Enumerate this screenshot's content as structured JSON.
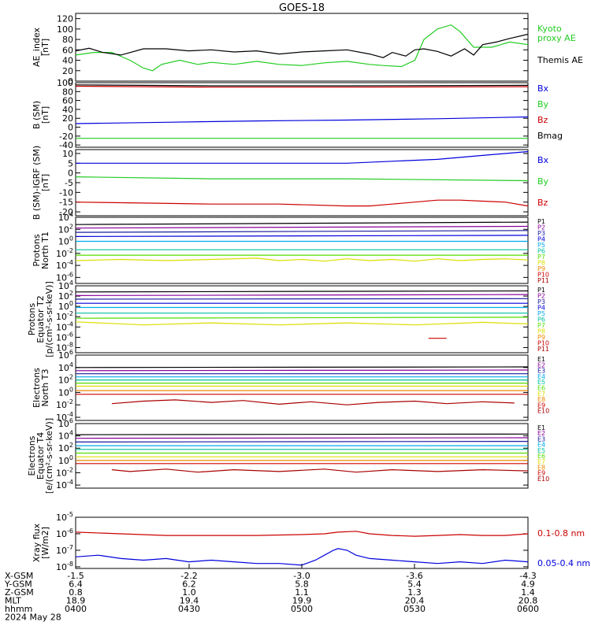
{
  "title": "GOES-18",
  "colors": {
    "black": "#000000",
    "red": "#cc0000",
    "green": "#22cc22",
    "blue": "#0000dd",
    "purple": "#880099",
    "navy": "#1a1aa0",
    "cyan": "#00aaee",
    "teal": "#00c0a0",
    "lime": "#55dd00",
    "yellow": "#dddd00",
    "orange": "#ee8800",
    "darkred": "#aa0000"
  },
  "footer": {
    "rows": [
      {
        "label": "X-GSM",
        "values": [
          "-1.5",
          "-2.2",
          "-3.0",
          "-3.6",
          "-4.3"
        ]
      },
      {
        "label": "Y-GSM",
        "values": [
          "6.4",
          "6.2",
          "5.8",
          "5.4",
          "4.9"
        ]
      },
      {
        "label": "Z-GSM",
        "values": [
          "0.8",
          "1.0",
          "1.1",
          "1.3",
          "1.4"
        ]
      },
      {
        "label": "MLT",
        "values": [
          "18.9",
          "19.4",
          "19.9",
          "20.4",
          "20.8"
        ]
      },
      {
        "label": "hhmm",
        "values": [
          "0400",
          "0430",
          "0500",
          "0530",
          "0600"
        ]
      }
    ],
    "date": "2024 May 28"
  },
  "chart_data": [
    {
      "type": "line",
      "ylabel": "AE_index\n[nT]",
      "yticks": [
        "120",
        "100",
        "80",
        "60",
        "40",
        "20",
        "0"
      ],
      "ylim": [
        0,
        130
      ],
      "series": [
        {
          "name": "Kyoto\nproxy AE",
          "color": "#22cc22",
          "x": [
            0,
            4,
            8,
            12,
            15,
            17,
            19,
            23,
            27,
            30,
            35,
            40,
            45,
            50,
            55,
            60,
            65,
            68,
            72,
            75,
            77,
            80,
            83,
            85,
            88,
            92,
            96,
            100
          ],
          "y": [
            50,
            55,
            55,
            40,
            25,
            20,
            32,
            40,
            32,
            36,
            32,
            38,
            32,
            30,
            35,
            38,
            32,
            30,
            28,
            40,
            80,
            100,
            108,
            95,
            65,
            65,
            75,
            70
          ]
        },
        {
          "name": "Themis AE",
          "color": "#000000",
          "x": [
            0,
            3,
            6,
            10,
            15,
            20,
            25,
            30,
            35,
            40,
            45,
            50,
            55,
            60,
            65,
            68,
            70,
            73,
            75,
            77,
            80,
            83,
            86,
            88,
            90,
            93,
            96,
            100
          ],
          "y": [
            58,
            63,
            55,
            50,
            62,
            62,
            58,
            60,
            56,
            58,
            52,
            56,
            58,
            60,
            52,
            45,
            55,
            48,
            60,
            62,
            57,
            48,
            62,
            50,
            70,
            75,
            82,
            90
          ]
        }
      ]
    },
    {
      "type": "line",
      "ylabel": "B (SM)\n[nT]",
      "yticks": [
        "100",
        "80",
        "60",
        "40",
        "20",
        "0",
        "-20",
        "-40"
      ],
      "ylim": [
        -45,
        100
      ],
      "series": [
        {
          "name": "Bx",
          "color": "#0000dd",
          "x": [
            0,
            20,
            40,
            60,
            80,
            100
          ],
          "y": [
            8,
            11,
            14,
            16,
            19,
            23
          ]
        },
        {
          "name": "By",
          "color": "#22cc22",
          "x": [
            0,
            100
          ],
          "y": [
            -25,
            -25
          ]
        },
        {
          "name": "Bz",
          "color": "#cc0000",
          "x": [
            0,
            30,
            60,
            100
          ],
          "y": [
            92,
            90,
            90,
            91
          ]
        },
        {
          "name": "Bmag",
          "color": "#000000",
          "x": [
            0,
            30,
            60,
            100
          ],
          "y": [
            95,
            93,
            93,
            94
          ]
        }
      ]
    },
    {
      "type": "line",
      "ylabel": "B (SM)-IGRF (SM)\n[nT]",
      "yticks": [
        "10",
        "5",
        "0",
        "-5",
        "-10",
        "-15",
        "-20"
      ],
      "ylim": [
        -22,
        12
      ],
      "series": [
        {
          "name": "Bx",
          "color": "#0000dd",
          "x": [
            0,
            10,
            20,
            30,
            50,
            60,
            70,
            80,
            90,
            100
          ],
          "y": [
            5,
            5,
            5,
            5,
            5,
            5,
            6,
            7,
            9,
            11
          ]
        },
        {
          "name": "By",
          "color": "#22cc22",
          "x": [
            0,
            30,
            60,
            100
          ],
          "y": [
            -2,
            -3,
            -3,
            -4
          ]
        },
        {
          "name": "Bz",
          "color": "#cc0000",
          "x": [
            0,
            15,
            30,
            45,
            60,
            65,
            70,
            75,
            80,
            85,
            90,
            95,
            100
          ],
          "y": [
            -15,
            -15.5,
            -16,
            -16,
            -17,
            -17,
            -16,
            -15,
            -14,
            -14,
            -14.5,
            -15,
            -17
          ]
        }
      ]
    },
    {
      "type": "line",
      "ylabel": "Protons\nNorth T1",
      "yticks": [
        "10^4",
        "10^2",
        "10^0",
        "10^-2",
        "10^-4",
        "10^-6"
      ],
      "ylim": [
        -7,
        4
      ],
      "series": [
        {
          "name": "P1",
          "color": "#000000",
          "x": [
            0,
            100
          ],
          "y": [
            2.8,
            3.2
          ]
        },
        {
          "name": "P2",
          "color": "#880099",
          "x": [
            0,
            100
          ],
          "y": [
            2.2,
            2.5
          ]
        },
        {
          "name": "P3",
          "color": "#1a1aa0",
          "x": [
            0,
            100
          ],
          "y": [
            1.5,
            1.8
          ]
        },
        {
          "name": "P4",
          "color": "#0000dd",
          "x": [
            0,
            100
          ],
          "y": [
            0.8,
            1.0
          ]
        },
        {
          "name": "P5",
          "color": "#00aaee",
          "x": [
            0,
            100
          ],
          "y": [
            0.0,
            0.0
          ]
        },
        {
          "name": "P6",
          "color": "#00c0a0",
          "x": [
            0,
            100
          ],
          "y": [
            -1.4,
            -1.4
          ]
        },
        {
          "name": "P7",
          "color": "#55dd00",
          "x": [
            0,
            100
          ],
          "y": [
            -2.3,
            -2.3
          ]
        },
        {
          "name": "P8",
          "color": "#dddd00",
          "x": [
            0,
            10,
            20,
            30,
            40,
            45,
            50,
            55,
            60,
            65,
            70,
            75,
            80,
            85,
            90,
            95,
            100
          ],
          "y": [
            -3.2,
            -3.0,
            -3.2,
            -3.0,
            -2.8,
            -3.2,
            -3.0,
            -3.3,
            -2.9,
            -3.2,
            -3.0,
            -3.3,
            -2.9,
            -3.2,
            -3.0,
            -2.9,
            -3.1
          ]
        },
        {
          "name": "P9",
          "color": "#ee8800",
          "x": [],
          "y": []
        },
        {
          "name": "P10",
          "color": "#cc0000",
          "x": [],
          "y": []
        },
        {
          "name": "P11",
          "color": "#aa0000",
          "x": [],
          "y": []
        }
      ]
    },
    {
      "type": "line",
      "ylabel": "Protons\nEquator T2\n[p/(cm²-s-sr-keV)]",
      "yticks": [
        "10^4",
        "10^2",
        "10^0",
        "10^-2",
        "10^-4",
        "10^-6",
        "10^-8"
      ],
      "ylim": [
        -9,
        4
      ],
      "series": [
        {
          "name": "P1",
          "color": "#000000",
          "x": [
            0,
            100
          ],
          "y": [
            2.8,
            3.0
          ]
        },
        {
          "name": "P2",
          "color": "#880099",
          "x": [
            0,
            100
          ],
          "y": [
            2.1,
            2.3
          ]
        },
        {
          "name": "P3",
          "color": "#1a1aa0",
          "x": [
            0,
            100
          ],
          "y": [
            1.4,
            1.5
          ]
        },
        {
          "name": "P4",
          "color": "#0000dd",
          "x": [
            0,
            100
          ],
          "y": [
            0.6,
            0.6
          ]
        },
        {
          "name": "P5",
          "color": "#00aaee",
          "x": [
            0,
            100
          ],
          "y": [
            -0.2,
            -0.2
          ]
        },
        {
          "name": "P6",
          "color": "#00c0a0",
          "x": [
            0,
            100
          ],
          "y": [
            -1.3,
            -1.3
          ]
        },
        {
          "name": "P7",
          "color": "#55dd00",
          "x": [
            0,
            100
          ],
          "y": [
            -2.3,
            -2.1
          ]
        },
        {
          "name": "P8",
          "color": "#dddd00",
          "x": [
            0,
            15,
            30,
            45,
            60,
            75,
            90,
            100
          ],
          "y": [
            -3.0,
            -3.6,
            -3.2,
            -3.6,
            -3.2,
            -3.6,
            -3.1,
            -3.4
          ]
        },
        {
          "name": "P9",
          "color": "#ee8800",
          "x": [],
          "y": []
        },
        {
          "name": "P10",
          "color": "#cc0000",
          "x": [
            78,
            82
          ],
          "y": [
            -6.2,
            -6.2
          ]
        },
        {
          "name": "P11",
          "color": "#aa0000",
          "x": [],
          "y": []
        }
      ]
    },
    {
      "type": "line",
      "ylabel": "Electrons\nNorth T3",
      "yticks": [
        "10^6",
        "10^4",
        "10^2",
        "10^0",
        "10^-2",
        "10^-4"
      ],
      "ylim": [
        -4.5,
        6
      ],
      "series": [
        {
          "name": "E1",
          "color": "#000000",
          "x": [
            0,
            100
          ],
          "y": [
            4.0,
            4.1
          ]
        },
        {
          "name": "E2",
          "color": "#880099",
          "x": [
            0,
            100
          ],
          "y": [
            3.5,
            3.6
          ]
        },
        {
          "name": "E3",
          "color": "#1a1aa0",
          "x": [
            0,
            100
          ],
          "y": [
            3.0,
            3.0
          ]
        },
        {
          "name": "E4",
          "color": "#00aaee",
          "x": [
            0,
            100
          ],
          "y": [
            2.5,
            2.5
          ]
        },
        {
          "name": "E5",
          "color": "#00c0a0",
          "x": [
            0,
            100
          ],
          "y": [
            2.0,
            2.0
          ]
        },
        {
          "name": "E6",
          "color": "#55dd00",
          "x": [
            0,
            100
          ],
          "y": [
            1.5,
            1.5
          ]
        },
        {
          "name": "E7",
          "color": "#dddd00",
          "x": [
            0,
            100
          ],
          "y": [
            1.0,
            1.0
          ]
        },
        {
          "name": "E8",
          "color": "#ee8800",
          "x": [
            0,
            100
          ],
          "y": [
            0.3,
            0.3
          ]
        },
        {
          "name": "E9",
          "color": "#cc0000",
          "x": [
            0,
            100
          ],
          "y": [
            -0.3,
            -0.3
          ]
        },
        {
          "name": "E10",
          "color": "#aa0000",
          "x": [
            8,
            15,
            22,
            30,
            37,
            45,
            52,
            60,
            67,
            75,
            82,
            90,
            97
          ],
          "y": [
            -1.8,
            -1.4,
            -1.2,
            -1.6,
            -1.3,
            -1.9,
            -1.5,
            -2.0,
            -1.6,
            -1.4,
            -1.8,
            -1.5,
            -1.7
          ]
        }
      ]
    },
    {
      "type": "line",
      "ylabel": "Electrons\nEquator T4\n[e/(cm²-s-sr-keV)]",
      "yticks": [
        "10^6",
        "10^4",
        "10^2",
        "10^0",
        "10^-2",
        "10^-4"
      ],
      "ylim": [
        -4.5,
        6
      ],
      "series": [
        {
          "name": "E1",
          "color": "#000000",
          "x": [
            0,
            100
          ],
          "y": [
            4.2,
            4.3
          ]
        },
        {
          "name": "E2",
          "color": "#880099",
          "x": [
            0,
            100
          ],
          "y": [
            3.6,
            3.7
          ]
        },
        {
          "name": "E3",
          "color": "#1a1aa0",
          "x": [
            0,
            100
          ],
          "y": [
            3.0,
            3.1
          ]
        },
        {
          "name": "E4",
          "color": "#00aaee",
          "x": [
            0,
            100
          ],
          "y": [
            2.4,
            2.4
          ]
        },
        {
          "name": "E5",
          "color": "#00c0a0",
          "x": [
            0,
            100
          ],
          "y": [
            1.8,
            1.8
          ]
        },
        {
          "name": "E6",
          "color": "#55dd00",
          "x": [
            0,
            100
          ],
          "y": [
            1.2,
            1.2
          ]
        },
        {
          "name": "E7",
          "color": "#dddd00",
          "x": [
            0,
            100
          ],
          "y": [
            0.6,
            0.6
          ]
        },
        {
          "name": "E8",
          "color": "#ee8800",
          "x": [
            0,
            100
          ],
          "y": [
            0.0,
            0.0
          ]
        },
        {
          "name": "E9",
          "color": "#cc0000",
          "x": [
            0,
            100
          ],
          "y": [
            -0.5,
            -0.5
          ]
        },
        {
          "name": "E10",
          "color": "#aa0000",
          "x": [
            8,
            12,
            20,
            27,
            35,
            45,
            55,
            62,
            70,
            80,
            90,
            100
          ],
          "y": [
            -1.5,
            -1.8,
            -1.4,
            -1.9,
            -1.5,
            -1.8,
            -1.4,
            -1.9,
            -1.5,
            -1.8,
            -1.5,
            -1.7
          ]
        }
      ]
    },
    {
      "type": "line",
      "ylabel": "Xray flux\n[W/m2]",
      "yticks": [
        "10^-5",
        "10^-6",
        "10^-7",
        "10^-8"
      ],
      "ylim": [
        -8.1,
        -5
      ],
      "series": [
        {
          "name": "0.1-0.8 nm",
          "color": "#cc0000",
          "x": [
            0,
            10,
            20,
            30,
            40,
            50,
            55,
            58,
            62,
            65,
            70,
            75,
            80,
            85,
            90,
            95,
            100
          ],
          "y": [
            -5.9,
            -6.0,
            -6.1,
            -6.1,
            -6.1,
            -6.05,
            -6.0,
            -5.9,
            -5.85,
            -6.0,
            -6.1,
            -6.15,
            -6.1,
            -6.05,
            -6.1,
            -6.1,
            -6.0
          ]
        },
        {
          "name": "0.05-0.4 nm",
          "color": "#0000dd",
          "x": [
            0,
            5,
            10,
            15,
            20,
            25,
            30,
            35,
            40,
            45,
            50,
            53,
            55,
            57,
            58,
            60,
            62,
            65,
            70,
            75,
            80,
            85,
            90,
            95,
            100
          ],
          "y": [
            -7.4,
            -7.3,
            -7.5,
            -7.6,
            -7.5,
            -7.7,
            -7.6,
            -7.7,
            -7.8,
            -7.8,
            -7.9,
            -7.6,
            -7.3,
            -7.0,
            -6.9,
            -7.0,
            -7.3,
            -7.5,
            -7.6,
            -7.7,
            -7.8,
            -7.7,
            -7.8,
            -7.6,
            -7.7
          ]
        }
      ]
    }
  ]
}
